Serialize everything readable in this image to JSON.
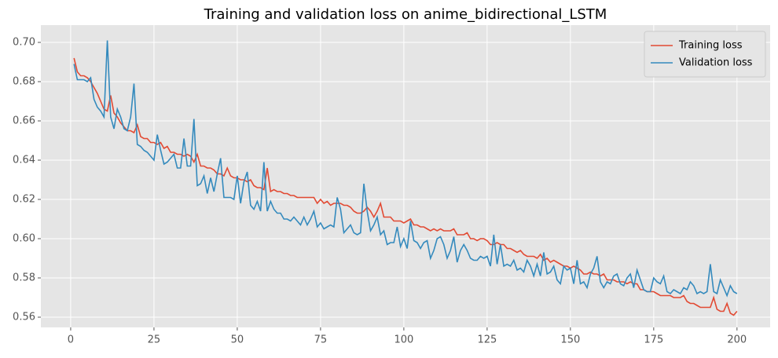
{
  "chart_data": {
    "type": "line",
    "title": "Training and validation loss on anime_bidirectional_LSTM",
    "x": [
      1,
      2,
      3,
      4,
      5,
      6,
      7,
      8,
      9,
      10,
      11,
      12,
      13,
      14,
      15,
      16,
      17,
      18,
      19,
      20,
      21,
      22,
      23,
      24,
      25,
      26,
      27,
      28,
      29,
      30,
      31,
      32,
      33,
      34,
      35,
      36,
      37,
      38,
      39,
      40,
      41,
      42,
      43,
      44,
      45,
      46,
      47,
      48,
      49,
      50,
      51,
      52,
      53,
      54,
      55,
      56,
      57,
      58,
      59,
      60,
      61,
      62,
      63,
      64,
      65,
      66,
      67,
      68,
      69,
      70,
      71,
      72,
      73,
      74,
      75,
      76,
      77,
      78,
      79,
      80,
      81,
      82,
      83,
      84,
      85,
      86,
      87,
      88,
      89,
      90,
      91,
      92,
      93,
      94,
      95,
      96,
      97,
      98,
      99,
      100,
      101,
      102,
      103,
      104,
      105,
      106,
      107,
      108,
      109,
      110,
      111,
      112,
      113,
      114,
      115,
      116,
      117,
      118,
      119,
      120,
      121,
      122,
      123,
      124,
      125,
      126,
      127,
      128,
      129,
      130,
      131,
      132,
      133,
      134,
      135,
      136,
      137,
      138,
      139,
      140,
      141,
      142,
      143,
      144,
      145,
      146,
      147,
      148,
      149,
      150,
      151,
      152,
      153,
      154,
      155,
      156,
      157,
      158,
      159,
      160,
      161,
      162,
      163,
      164,
      165,
      166,
      167,
      168,
      169,
      170,
      171,
      172,
      173,
      174,
      175,
      176,
      177,
      178,
      179,
      180,
      181,
      182,
      183,
      184,
      185,
      186,
      187,
      188,
      189,
      190,
      191,
      192,
      193,
      194,
      195,
      196,
      197,
      198,
      199,
      200
    ],
    "series": [
      {
        "name": "Training loss",
        "color": "#E24A33",
        "values": [
          0.692,
          0.685,
          0.683,
          0.683,
          0.682,
          0.68,
          0.677,
          0.674,
          0.67,
          0.666,
          0.665,
          0.673,
          0.664,
          0.662,
          0.659,
          0.657,
          0.655,
          0.655,
          0.654,
          0.658,
          0.652,
          0.651,
          0.651,
          0.649,
          0.649,
          0.648,
          0.649,
          0.646,
          0.647,
          0.644,
          0.644,
          0.643,
          0.643,
          0.642,
          0.643,
          0.642,
          0.639,
          0.643,
          0.637,
          0.637,
          0.636,
          0.636,
          0.635,
          0.633,
          0.633,
          0.632,
          0.636,
          0.632,
          0.631,
          0.631,
          0.63,
          0.63,
          0.629,
          0.63,
          0.627,
          0.626,
          0.626,
          0.625,
          0.636,
          0.624,
          0.625,
          0.624,
          0.624,
          0.623,
          0.623,
          0.622,
          0.622,
          0.621,
          0.621,
          0.621,
          0.621,
          0.621,
          0.621,
          0.618,
          0.62,
          0.618,
          0.619,
          0.617,
          0.618,
          0.618,
          0.618,
          0.617,
          0.617,
          0.616,
          0.614,
          0.613,
          0.613,
          0.614,
          0.616,
          0.614,
          0.611,
          0.614,
          0.618,
          0.611,
          0.611,
          0.611,
          0.609,
          0.609,
          0.609,
          0.608,
          0.609,
          0.61,
          0.607,
          0.607,
          0.606,
          0.606,
          0.605,
          0.604,
          0.605,
          0.604,
          0.605,
          0.604,
          0.604,
          0.604,
          0.605,
          0.602,
          0.602,
          0.602,
          0.603,
          0.6,
          0.6,
          0.599,
          0.6,
          0.6,
          0.599,
          0.597,
          0.597,
          0.598,
          0.597,
          0.597,
          0.595,
          0.595,
          0.594,
          0.593,
          0.594,
          0.592,
          0.591,
          0.591,
          0.591,
          0.59,
          0.592,
          0.589,
          0.59,
          0.588,
          0.589,
          0.588,
          0.587,
          0.586,
          0.586,
          0.585,
          0.586,
          0.585,
          0.584,
          0.582,
          0.582,
          0.583,
          0.582,
          0.582,
          0.581,
          0.582,
          0.579,
          0.579,
          0.579,
          0.578,
          0.578,
          0.578,
          0.577,
          0.578,
          0.577,
          0.577,
          0.574,
          0.574,
          0.573,
          0.573,
          0.573,
          0.572,
          0.571,
          0.571,
          0.571,
          0.571,
          0.57,
          0.57,
          0.57,
          0.571,
          0.568,
          0.567,
          0.567,
          0.566,
          0.565,
          0.565,
          0.565,
          0.565,
          0.57,
          0.564,
          0.563,
          0.563,
          0.567,
          0.562,
          0.561,
          0.563
        ]
      },
      {
        "name": "Validation loss",
        "color": "#348ABD",
        "values": [
          0.689,
          0.681,
          0.681,
          0.681,
          0.68,
          0.682,
          0.671,
          0.667,
          0.665,
          0.662,
          0.701,
          0.662,
          0.656,
          0.666,
          0.662,
          0.656,
          0.655,
          0.662,
          0.679,
          0.648,
          0.647,
          0.645,
          0.644,
          0.642,
          0.64,
          0.653,
          0.645,
          0.638,
          0.639,
          0.641,
          0.643,
          0.636,
          0.636,
          0.651,
          0.637,
          0.637,
          0.661,
          0.627,
          0.628,
          0.632,
          0.623,
          0.631,
          0.624,
          0.633,
          0.641,
          0.621,
          0.621,
          0.621,
          0.62,
          0.632,
          0.618,
          0.629,
          0.634,
          0.617,
          0.615,
          0.619,
          0.614,
          0.639,
          0.614,
          0.619,
          0.615,
          0.613,
          0.613,
          0.61,
          0.61,
          0.609,
          0.611,
          0.609,
          0.607,
          0.611,
          0.607,
          0.61,
          0.614,
          0.606,
          0.608,
          0.605,
          0.606,
          0.607,
          0.606,
          0.621,
          0.615,
          0.603,
          0.605,
          0.607,
          0.603,
          0.602,
          0.603,
          0.628,
          0.614,
          0.604,
          0.607,
          0.611,
          0.602,
          0.604,
          0.597,
          0.598,
          0.598,
          0.606,
          0.596,
          0.6,
          0.595,
          0.609,
          0.599,
          0.598,
          0.595,
          0.598,
          0.599,
          0.59,
          0.594,
          0.6,
          0.601,
          0.597,
          0.59,
          0.594,
          0.601,
          0.588,
          0.594,
          0.597,
          0.594,
          0.59,
          0.589,
          0.589,
          0.591,
          0.59,
          0.591,
          0.586,
          0.602,
          0.587,
          0.597,
          0.586,
          0.587,
          0.586,
          0.589,
          0.584,
          0.585,
          0.583,
          0.589,
          0.586,
          0.581,
          0.587,
          0.581,
          0.593,
          0.582,
          0.583,
          0.586,
          0.579,
          0.577,
          0.586,
          0.584,
          0.585,
          0.577,
          0.589,
          0.577,
          0.578,
          0.575,
          0.582,
          0.585,
          0.591,
          0.578,
          0.575,
          0.578,
          0.577,
          0.581,
          0.582,
          0.577,
          0.576,
          0.58,
          0.582,
          0.575,
          0.584,
          0.579,
          0.574,
          0.573,
          0.573,
          0.58,
          0.578,
          0.577,
          0.581,
          0.573,
          0.572,
          0.574,
          0.573,
          0.572,
          0.575,
          0.574,
          0.578,
          0.576,
          0.572,
          0.573,
          0.572,
          0.573,
          0.587,
          0.573,
          0.572,
          0.579,
          0.575,
          0.571,
          0.576,
          0.573,
          0.572
        ]
      }
    ],
    "xlim": [
      -8.95,
      209.95
    ],
    "ylim": [
      0.5548,
      0.7088
    ],
    "xticks": [
      0,
      25,
      50,
      75,
      100,
      125,
      150,
      175,
      200
    ],
    "yticks": [
      0.56,
      0.58,
      {
        "value": 0.6,
        "label": "0.60"
      },
      0.62,
      0.64,
      0.66,
      0.68,
      {
        "value": 0.7,
        "label": "0.70"
      }
    ],
    "grid": true,
    "legend": "upper right"
  }
}
